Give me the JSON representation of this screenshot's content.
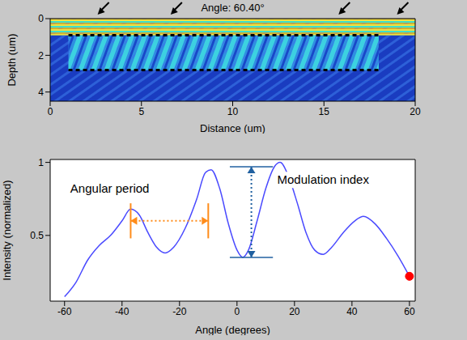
{
  "chart_data": [
    {
      "type": "image",
      "title": "Angle: 60.40°",
      "x_label": "Distance (um)",
      "y_label": "Depth (um)",
      "xlim": [
        0,
        20
      ],
      "ylim": [
        4.5,
        0
      ],
      "xticks": [
        0,
        5,
        10,
        15,
        20
      ],
      "yticks": [
        0,
        2,
        4
      ],
      "layers": [
        {
          "x": [
            0,
            20
          ],
          "y": [
            0,
            4.5
          ],
          "color": "#1a3cc0"
        },
        {
          "x": [
            0,
            20
          ],
          "y": [
            0,
            0.9
          ],
          "color": "#9ad84a"
        },
        {
          "x": [
            1,
            18
          ],
          "y": [
            0.9,
            2.8
          ],
          "color": "#2f8fe0"
        }
      ],
      "boundaries": [
        {
          "x": [
            1,
            18
          ],
          "y": 0.9,
          "color": "#000000",
          "line_style": "dashed"
        },
        {
          "x": [
            1,
            18
          ],
          "y": 2.8,
          "color": "#000000",
          "line_style": "dashed"
        }
      ]
    },
    {
      "type": "line",
      "x_label": "Angle (degrees)",
      "y_label": "Intensity (normalized)",
      "color": "#4a4aff",
      "x": [
        -60,
        -56,
        -52,
        -48,
        -44,
        -40,
        -37,
        -34,
        -31,
        -28,
        -25,
        -22,
        -18,
        -14,
        -11,
        -9,
        -6,
        -3,
        0,
        2,
        4,
        7,
        10,
        13,
        15,
        18,
        21,
        24,
        27,
        30,
        33,
        37,
        41,
        44,
        48,
        52,
        56,
        60
      ],
      "values": [
        0.08,
        0.18,
        0.33,
        0.43,
        0.5,
        0.6,
        0.68,
        0.64,
        0.52,
        0.42,
        0.38,
        0.42,
        0.55,
        0.75,
        0.93,
        0.95,
        0.82,
        0.58,
        0.4,
        0.35,
        0.4,
        0.6,
        0.82,
        0.97,
        1.0,
        0.9,
        0.72,
        0.52,
        0.4,
        0.37,
        0.42,
        0.52,
        0.6,
        0.63,
        0.58,
        0.48,
        0.36,
        0.22
      ],
      "xlim": [
        -65,
        62
      ],
      "xticks": [
        -60,
        -40,
        -20,
        0,
        20,
        40,
        60
      ],
      "ylim": [
        0.05,
        1.02
      ],
      "yticks": [
        0.5,
        1
      ],
      "grid": false,
      "current": {
        "x": 60,
        "y": 0.22,
        "color": "#ff0000"
      },
      "annotations": [
        {
          "text": "Angular period",
          "x": -58,
          "y": 0.82,
          "color": "#000000",
          "bracket": {
            "x": [
              -37,
              -10
            ],
            "y": 0.6,
            "ends": [
              0.48,
              0.72
            ],
            "color": "#ff8c1a"
          }
        },
        {
          "text": "Modulation index",
          "x": 14,
          "y": 0.88,
          "color": "#000000",
          "bracket": {
            "x": 5,
            "y": [
              0.35,
              0.97
            ],
            "ends": [
              -2.5,
              12.5
            ],
            "color": "#2060a0"
          }
        }
      ]
    }
  ]
}
